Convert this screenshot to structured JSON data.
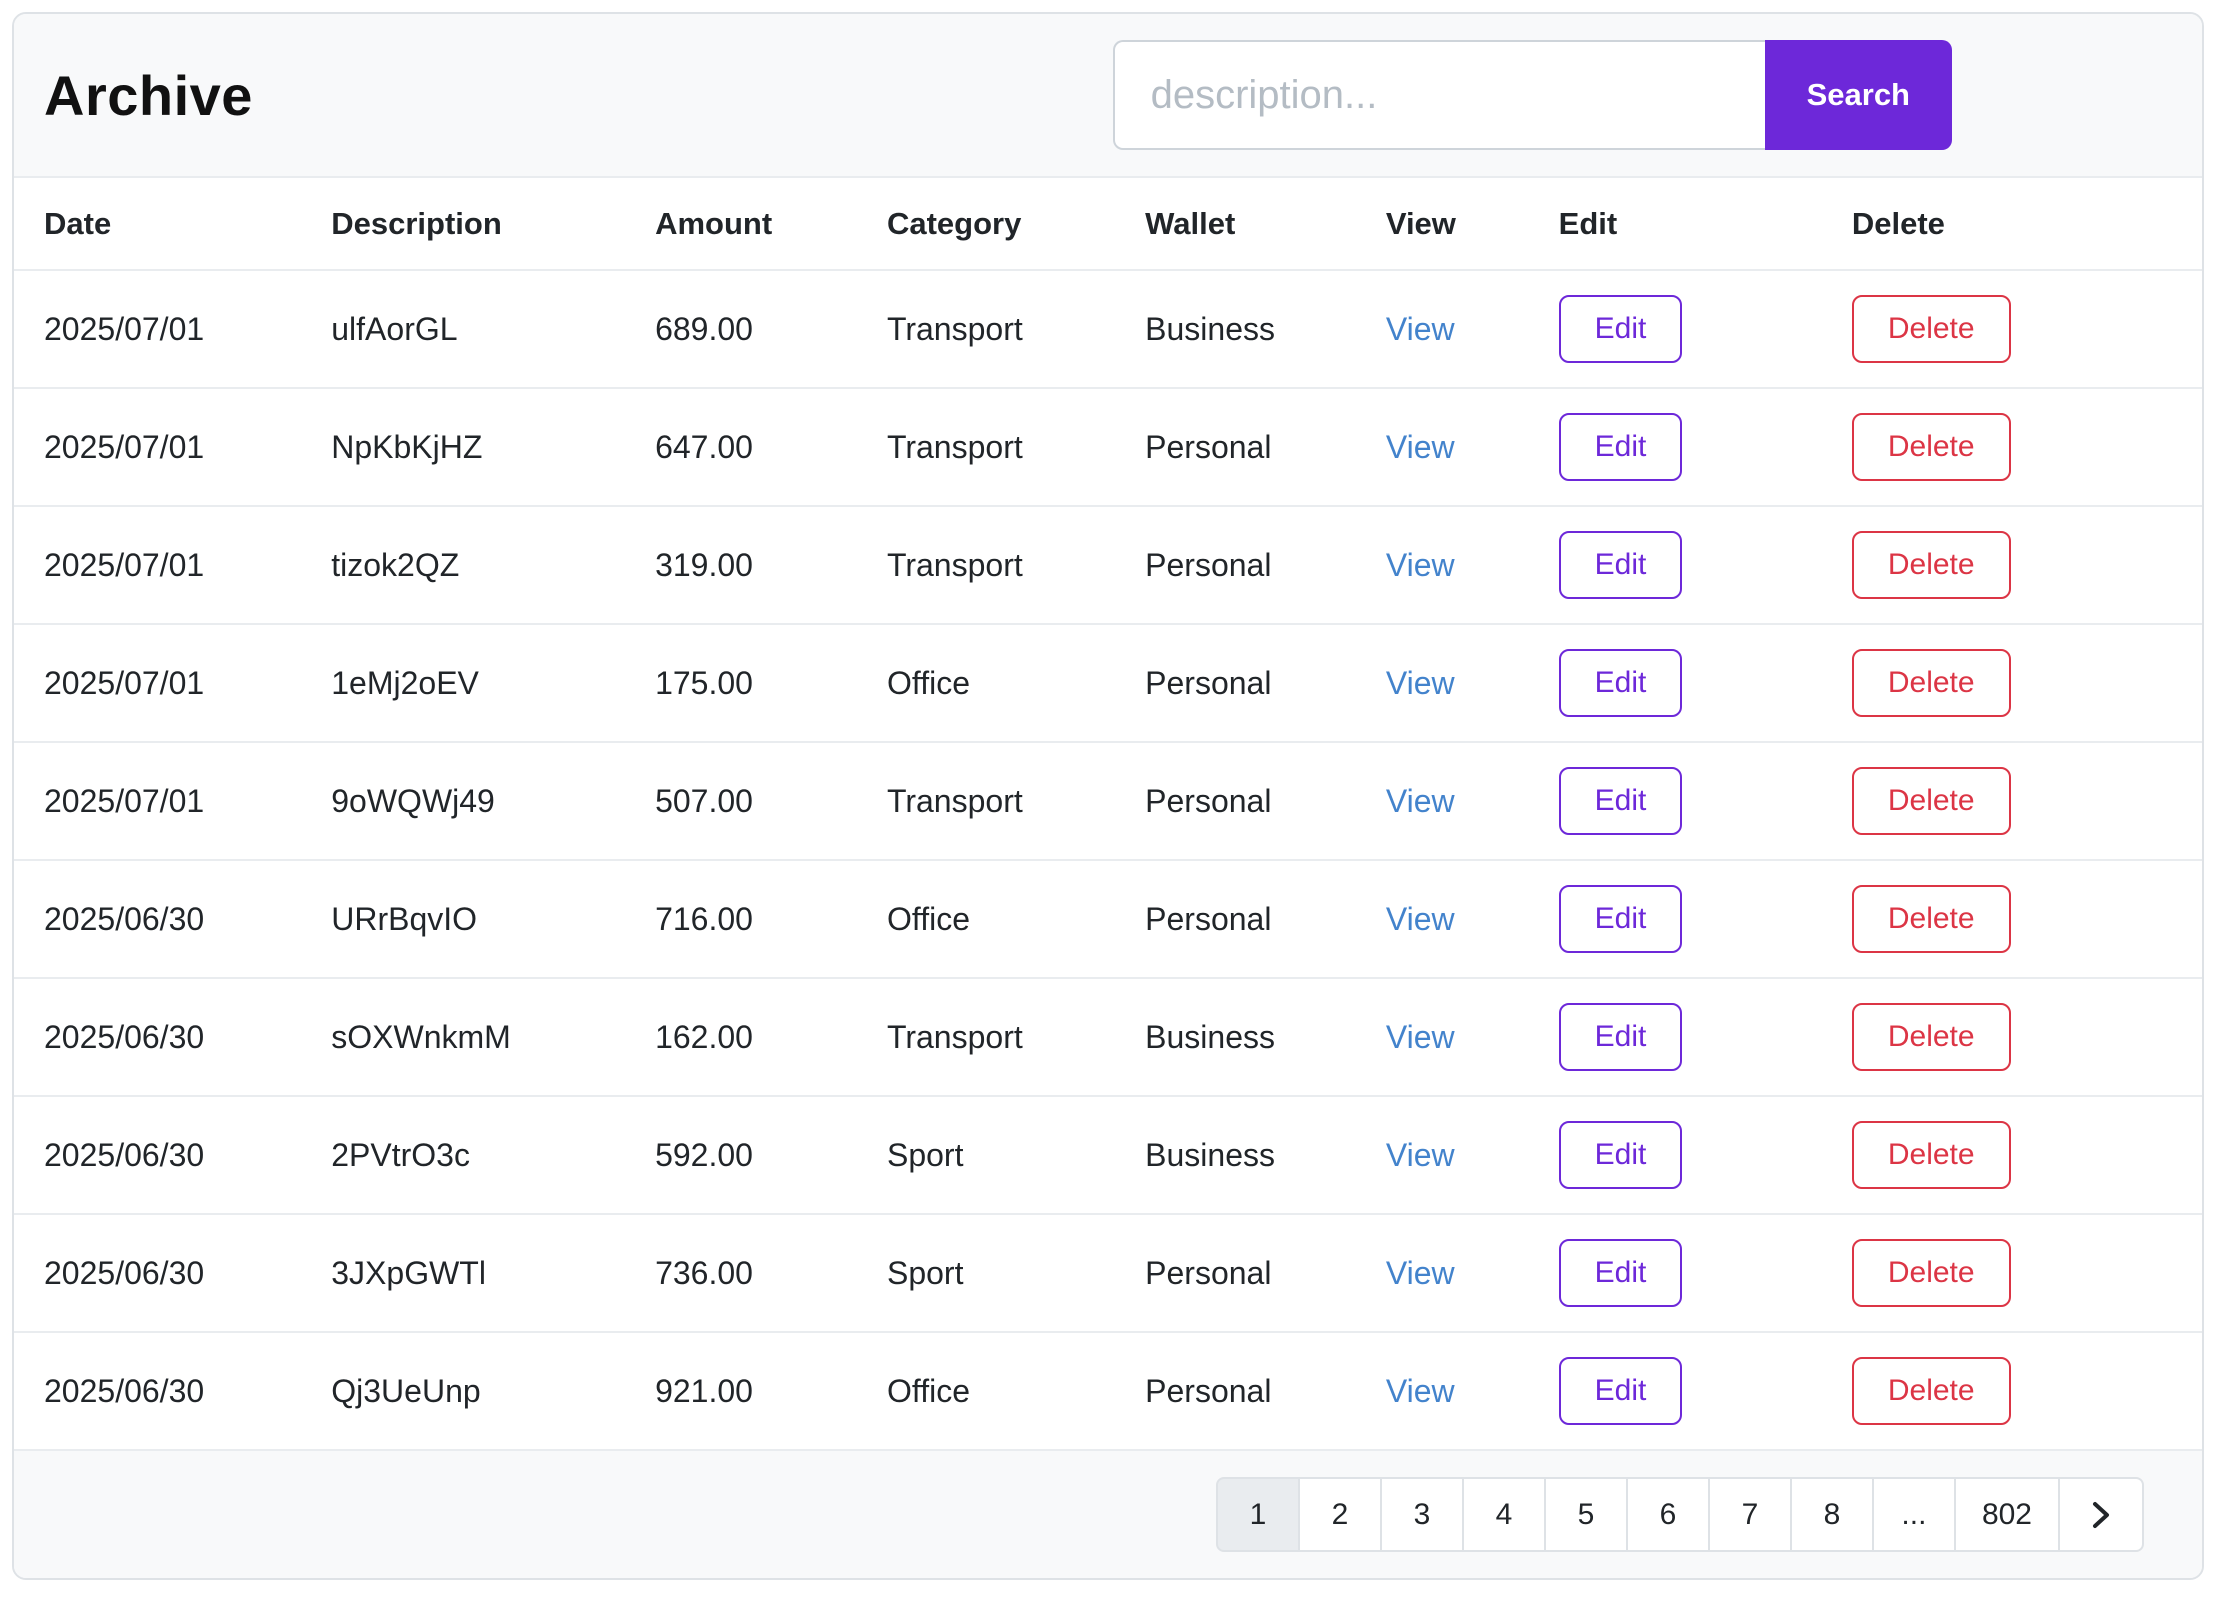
{
  "page": {
    "title": "Archive"
  },
  "search": {
    "placeholder": "description...",
    "button_label": "Search"
  },
  "table": {
    "headers": [
      "Date",
      "Description",
      "Amount",
      "Category",
      "Wallet",
      "View",
      "Edit",
      "Delete"
    ],
    "rows": [
      {
        "date": "2025/07/01",
        "description": "ulfAorGL",
        "amount": "689.00",
        "category": "Transport",
        "wallet": "Business",
        "view_label": "View",
        "edit_label": "Edit",
        "delete_label": "Delete"
      },
      {
        "date": "2025/07/01",
        "description": "NpKbKjHZ",
        "amount": "647.00",
        "category": "Transport",
        "wallet": "Personal",
        "view_label": "View",
        "edit_label": "Edit",
        "delete_label": "Delete"
      },
      {
        "date": "2025/07/01",
        "description": "tizok2QZ",
        "amount": "319.00",
        "category": "Transport",
        "wallet": "Personal",
        "view_label": "View",
        "edit_label": "Edit",
        "delete_label": "Delete"
      },
      {
        "date": "2025/07/01",
        "description": "1eMj2oEV",
        "amount": "175.00",
        "category": "Office",
        "wallet": "Personal",
        "view_label": "View",
        "edit_label": "Edit",
        "delete_label": "Delete"
      },
      {
        "date": "2025/07/01",
        "description": "9oWQWj49",
        "amount": "507.00",
        "category": "Transport",
        "wallet": "Personal",
        "view_label": "View",
        "edit_label": "Edit",
        "delete_label": "Delete"
      },
      {
        "date": "2025/06/30",
        "description": "URrBqvIO",
        "amount": "716.00",
        "category": "Office",
        "wallet": "Personal",
        "view_label": "View",
        "edit_label": "Edit",
        "delete_label": "Delete"
      },
      {
        "date": "2025/06/30",
        "description": "sOXWnkmM",
        "amount": "162.00",
        "category": "Transport",
        "wallet": "Business",
        "view_label": "View",
        "edit_label": "Edit",
        "delete_label": "Delete"
      },
      {
        "date": "2025/06/30",
        "description": "2PVtrO3c",
        "amount": "592.00",
        "category": "Sport",
        "wallet": "Business",
        "view_label": "View",
        "edit_label": "Edit",
        "delete_label": "Delete"
      },
      {
        "date": "2025/06/30",
        "description": "3JXpGWTl",
        "amount": "736.00",
        "category": "Sport",
        "wallet": "Personal",
        "view_label": "View",
        "edit_label": "Edit",
        "delete_label": "Delete"
      },
      {
        "date": "2025/06/30",
        "description": "Qj3UeUnp",
        "amount": "921.00",
        "category": "Office",
        "wallet": "Personal",
        "view_label": "View",
        "edit_label": "Edit",
        "delete_label": "Delete"
      }
    ]
  },
  "pagination": {
    "pages": [
      "1",
      "2",
      "3",
      "4",
      "5",
      "6",
      "7",
      "8",
      "...",
      "802"
    ],
    "active_page": "1"
  },
  "colors": {
    "accent_purple": "#6d28d9",
    "link_blue": "#4383cc",
    "danger_red": "#dc3545"
  }
}
